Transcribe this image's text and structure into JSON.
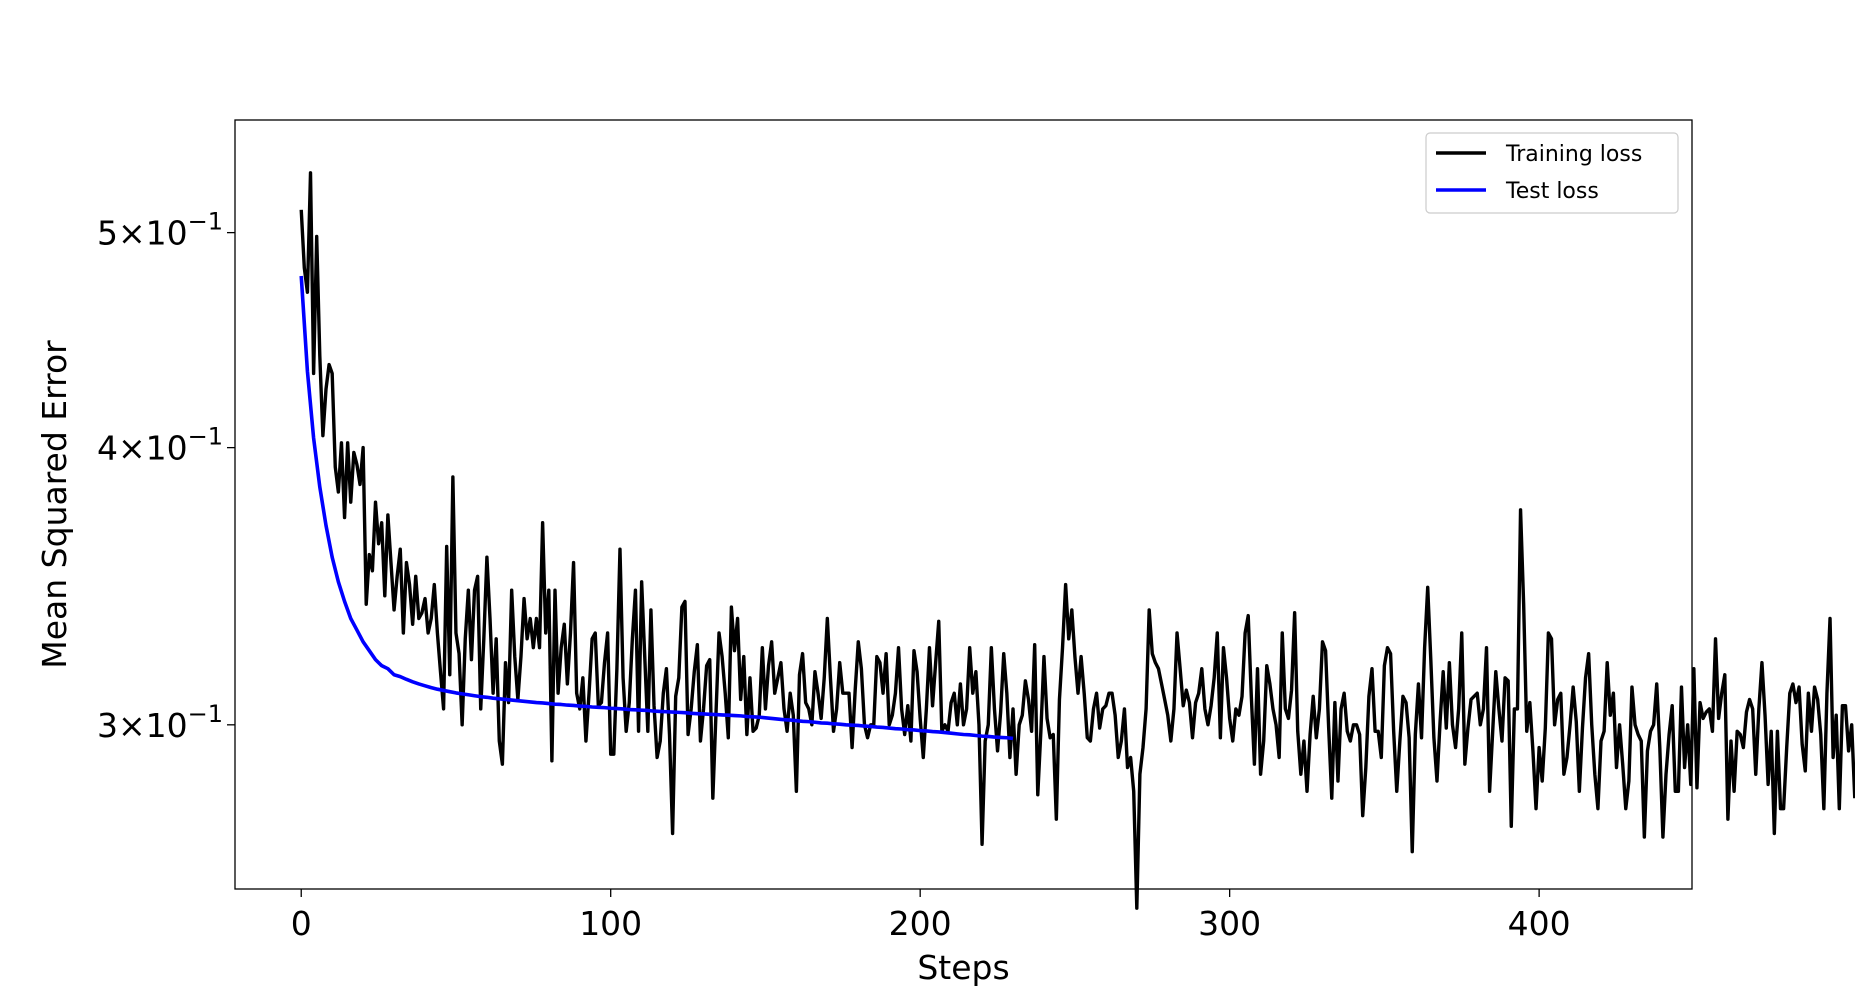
{
  "chart_data": {
    "type": "line",
    "xlabel": "Steps",
    "ylabel": "Mean Squared Error",
    "xlim": [
      -21.4,
      449.4
    ],
    "ylim": [
      0.253,
      0.562
    ],
    "yscale": "log",
    "grid": false,
    "legend_position": "top-right",
    "x_ticks": [
      0,
      100,
      200,
      300,
      400
    ],
    "x_tick_labels": [
      "0",
      "100",
      "200",
      "300",
      "400"
    ],
    "y_ticks": [
      {
        "value": 0.5,
        "mantissa": "5",
        "base": "10",
        "exponent": "−1"
      },
      {
        "value": 0.4,
        "mantissa": "4",
        "base": "10",
        "exponent": "−1"
      },
      {
        "value": 0.3,
        "mantissa": "3",
        "base": "10",
        "exponent": "−1"
      }
    ],
    "series": [
      {
        "name": "Training loss",
        "color": "#000000",
        "step": 1,
        "values": [
          0.512,
          0.482,
          0.47,
          0.532,
          0.432,
          0.498,
          0.44,
          0.405,
          0.425,
          0.436,
          0.432,
          0.392,
          0.382,
          0.402,
          0.372,
          0.402,
          0.378,
          0.398,
          0.393,
          0.385,
          0.4,
          0.34,
          0.358,
          0.352,
          0.378,
          0.362,
          0.37,
          0.343,
          0.373,
          0.355,
          0.338,
          0.35,
          0.36,
          0.33,
          0.355,
          0.347,
          0.333,
          0.35,
          0.335,
          0.337,
          0.342,
          0.33,
          0.335,
          0.347,
          0.33,
          0.317,
          0.305,
          0.361,
          0.316,
          0.388,
          0.33,
          0.323,
          0.3,
          0.328,
          0.345,
          0.321,
          0.345,
          0.35,
          0.305,
          0.328,
          0.357,
          0.335,
          0.31,
          0.328,
          0.295,
          0.288,
          0.32,
          0.307,
          0.345,
          0.322,
          0.308,
          0.322,
          0.342,
          0.328,
          0.335,
          0.325,
          0.335,
          0.325,
          0.37,
          0.33,
          0.345,
          0.289,
          0.345,
          0.31,
          0.325,
          0.333,
          0.313,
          0.33,
          0.355,
          0.31,
          0.305,
          0.315,
          0.295,
          0.31,
          0.328,
          0.33,
          0.306,
          0.307,
          0.32,
          0.33,
          0.291,
          0.291,
          0.318,
          0.36,
          0.315,
          0.298,
          0.307,
          0.328,
          0.345,
          0.298,
          0.348,
          0.322,
          0.298,
          0.338,
          0.306,
          0.29,
          0.295,
          0.31,
          0.318,
          0.297,
          0.268,
          0.309,
          0.315,
          0.339,
          0.341,
          0.297,
          0.305,
          0.317,
          0.326,
          0.295,
          0.305,
          0.319,
          0.321,
          0.278,
          0.303,
          0.33,
          0.322,
          0.31,
          0.296,
          0.339,
          0.324,
          0.335,
          0.308,
          0.322,
          0.297,
          0.315,
          0.298,
          0.299,
          0.303,
          0.325,
          0.305,
          0.319,
          0.327,
          0.31,
          0.315,
          0.32,
          0.305,
          0.298,
          0.31,
          0.303,
          0.28,
          0.316,
          0.323,
          0.307,
          0.305,
          0.3,
          0.317,
          0.31,
          0.302,
          0.315,
          0.335,
          0.315,
          0.298,
          0.305,
          0.32,
          0.31,
          0.31,
          0.31,
          0.293,
          0.311,
          0.327,
          0.318,
          0.3,
          0.296,
          0.3,
          0.3,
          0.322,
          0.32,
          0.31,
          0.323,
          0.3,
          0.303,
          0.31,
          0.325,
          0.305,
          0.297,
          0.306,
          0.295,
          0.324,
          0.317,
          0.302,
          0.29,
          0.305,
          0.325,
          0.306,
          0.32,
          0.334,
          0.298,
          0.3,
          0.298,
          0.307,
          0.31,
          0.3,
          0.313,
          0.3,
          0.305,
          0.325,
          0.31,
          0.317,
          0.3,
          0.265,
          0.295,
          0.3,
          0.325,
          0.305,
          0.292,
          0.304,
          0.323,
          0.31,
          0.29,
          0.305,
          0.285,
          0.3,
          0.303,
          0.314,
          0.308,
          0.298,
          0.326,
          0.279,
          0.298,
          0.322,
          0.302,
          0.296,
          0.297,
          0.272,
          0.308,
          0.325,
          0.347,
          0.328,
          0.338,
          0.322,
          0.31,
          0.322,
          0.31,
          0.296,
          0.295,
          0.305,
          0.31,
          0.299,
          0.305,
          0.306,
          0.31,
          0.31,
          0.303,
          0.29,
          0.295,
          0.305,
          0.287,
          0.29,
          0.28,
          0.248,
          0.285,
          0.293,
          0.305,
          0.338,
          0.323,
          0.32,
          0.318,
          0.313,
          0.308,
          0.303,
          0.295,
          0.305,
          0.33,
          0.318,
          0.306,
          0.311,
          0.307,
          0.296,
          0.307,
          0.31,
          0.318,
          0.305,
          0.3,
          0.306,
          0.315,
          0.33,
          0.296,
          0.325,
          0.315,
          0.302,
          0.295,
          0.305,
          0.303,
          0.309,
          0.33,
          0.336,
          0.309,
          0.288,
          0.318,
          0.285,
          0.295,
          0.319,
          0.313,
          0.305,
          0.3,
          0.29,
          0.33,
          0.305,
          0.302,
          0.311,
          0.337,
          0.298,
          0.285,
          0.295,
          0.28,
          0.297,
          0.309,
          0.296,
          0.305,
          0.327,
          0.324,
          0.299,
          0.278,
          0.307,
          0.283,
          0.305,
          0.31,
          0.298,
          0.295,
          0.3,
          0.3,
          0.297,
          0.273,
          0.287,
          0.309,
          0.318,
          0.298,
          0.298,
          0.29,
          0.319,
          0.325,
          0.323,
          0.298,
          0.28,
          0.295,
          0.309,
          0.307,
          0.296,
          0.263,
          0.297,
          0.313,
          0.296,
          0.325,
          0.346,
          0.321,
          0.296,
          0.283,
          0.301,
          0.317,
          0.299,
          0.32,
          0.3,
          0.293,
          0.305,
          0.33,
          0.288,
          0.299,
          0.308,
          0.309,
          0.31,
          0.3,
          0.305,
          0.325,
          0.28,
          0.298,
          0.317,
          0.305,
          0.295,
          0.315,
          0.314,
          0.27,
          0.305,
          0.305,
          0.375,
          0.34,
          0.298,
          0.307,
          0.292,
          0.275,
          0.293,
          0.283,
          0.299,
          0.33,
          0.328,
          0.3,
          0.308,
          0.31,
          0.285,
          0.29,
          0.3,
          0.312,
          0.301,
          0.28,
          0.299,
          0.315,
          0.323,
          0.3,
          0.285,
          0.275,
          0.295,
          0.298,
          0.32,
          0.303,
          0.31,
          0.287,
          0.3,
          0.288,
          0.275,
          0.283,
          0.312,
          0.3,
          0.297,
          0.295,
          0.267,
          0.292,
          0.298,
          0.3,
          0.313,
          0.293,
          0.267,
          0.285,
          0.297,
          0.306,
          0.28,
          0.28,
          0.312,
          0.287,
          0.3,
          0.282,
          0.318,
          0.281,
          0.307,
          0.302,
          0.304,
          0.305,
          0.298,
          0.328,
          0.302,
          0.31,
          0.316,
          0.272,
          0.295,
          0.28,
          0.298,
          0.297,
          0.293,
          0.304,
          0.308,
          0.305,
          0.285,
          0.305,
          0.32,
          0.303,
          0.282,
          0.298,
          0.268,
          0.298,
          0.275,
          0.275,
          0.293,
          0.31,
          0.313,
          0.307,
          0.312,
          0.294,
          0.286,
          0.31,
          0.298,
          0.312,
          0.308,
          0.297,
          0.275,
          0.31,
          0.335,
          0.29,
          0.303,
          0.275,
          0.306,
          0.306,
          0.292,
          0.3,
          0.278
        ]
      },
      {
        "name": "Test loss",
        "color": "#0000ff",
        "step": 2,
        "values": [
          0.478,
          0.433,
          0.404,
          0.384,
          0.369,
          0.357,
          0.348,
          0.341,
          0.335,
          0.331,
          0.327,
          0.324,
          0.321,
          0.319,
          0.318,
          0.316,
          0.3154,
          0.3145,
          0.3137,
          0.313,
          0.3124,
          0.3118,
          0.3113,
          0.3109,
          0.3105,
          0.3101,
          0.3098,
          0.3095,
          0.3092,
          0.3089,
          0.3087,
          0.3084,
          0.3082,
          0.308,
          0.3078,
          0.3076,
          0.3074,
          0.3072,
          0.307,
          0.3069,
          0.3067,
          0.3065,
          0.3064,
          0.3062,
          0.3061,
          0.3059,
          0.3058,
          0.3056,
          0.3055,
          0.3054,
          0.3052,
          0.3051,
          0.305,
          0.3048,
          0.3047,
          0.3046,
          0.3045,
          0.3043,
          0.3042,
          0.3041,
          0.304,
          0.3039,
          0.3038,
          0.3036,
          0.3035,
          0.3034,
          0.3033,
          0.3032,
          0.3031,
          0.303,
          0.3029,
          0.3028,
          0.3026,
          0.3025,
          0.3024,
          0.3022,
          0.302,
          0.3018,
          0.3016,
          0.3015,
          0.3013,
          0.3011,
          0.301,
          0.3008,
          0.3006,
          0.3005,
          0.3003,
          0.3002,
          0.3,
          0.2999,
          0.2998,
          0.2996,
          0.2995,
          0.2993,
          0.2992,
          0.299,
          0.2988,
          0.2987,
          0.2985,
          0.2984,
          0.2982,
          0.2981,
          0.2979,
          0.2978,
          0.2976,
          0.2974,
          0.2972,
          0.297,
          0.2969,
          0.2967,
          0.2965,
          0.2964,
          0.2962,
          0.2961,
          0.296,
          0.2958
        ]
      }
    ]
  }
}
